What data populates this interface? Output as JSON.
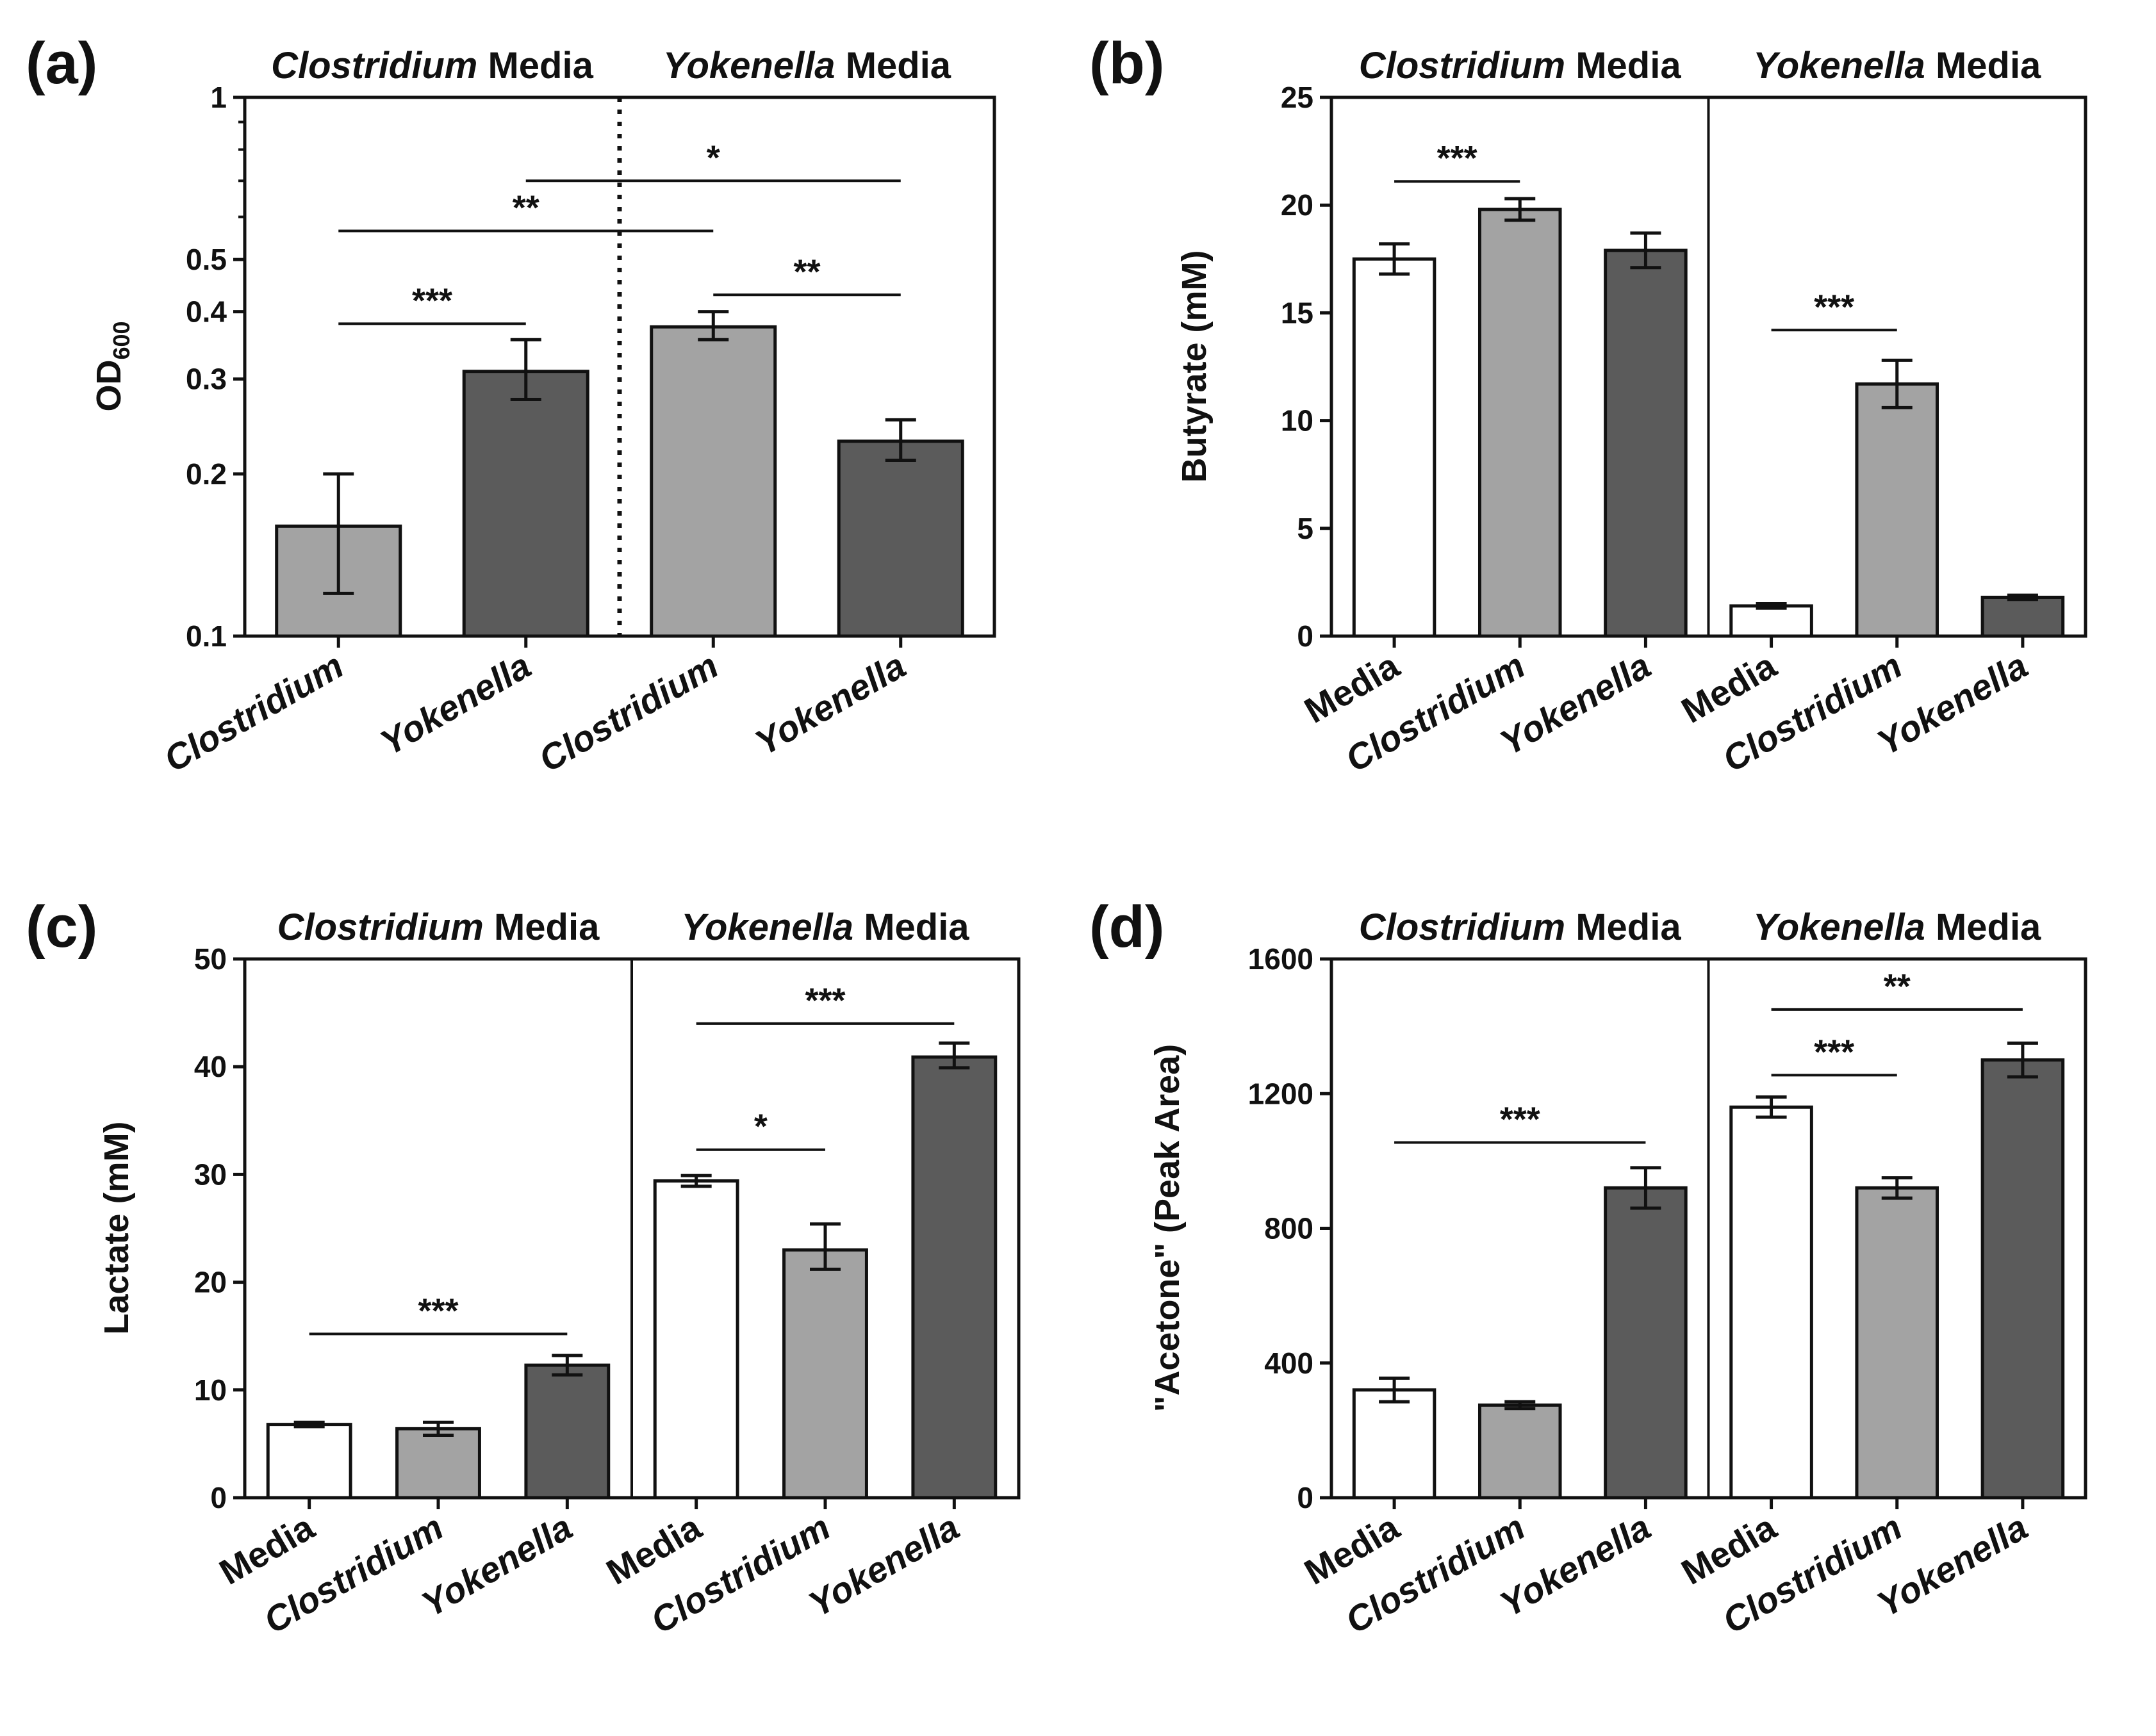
{
  "colors": {
    "media": "#ffffff",
    "clostridium": "#a3a3a3",
    "yokenella": "#5b5b5b",
    "stroke": "#111111"
  },
  "chart_data": [
    {
      "id": "a",
      "panel_label": "(a)",
      "type": "bar",
      "scale": "log",
      "ylabel": "OD",
      "ylabel_sub": "600",
      "ylim": [
        0.1,
        1
      ],
      "ticks": [
        {
          "value": 0.1,
          "label": "0.1"
        },
        {
          "value": 0.2,
          "label": "0.2"
        },
        {
          "value": 0.3,
          "label": "0.3"
        },
        {
          "value": 0.4,
          "label": "0.4"
        },
        {
          "value": 0.5,
          "label": "0.5"
        },
        {
          "value": 1,
          "label": "1"
        }
      ],
      "minor_ticks": [
        0.6,
        0.7,
        0.8,
        0.9
      ],
      "divider": "dotted",
      "groups": [
        {
          "organism": "Clostridium",
          "suffix": " Media"
        },
        {
          "organism": "Yokenella",
          "suffix": " Media"
        }
      ],
      "bars": [
        {
          "label": "Clostridium",
          "kind": "clostridium",
          "value": 0.16,
          "err": [
            0.12,
            0.2
          ]
        },
        {
          "label": "Yokenella",
          "kind": "yokenella",
          "value": 0.31,
          "err": [
            0.275,
            0.355
          ]
        },
        {
          "label": "Clostridium",
          "kind": "clostridium",
          "value": 0.375,
          "err": [
            0.355,
            0.4
          ]
        },
        {
          "label": "Yokenella",
          "kind": "yokenella",
          "value": 0.23,
          "err": [
            0.212,
            0.252
          ]
        }
      ],
      "significance": [
        {
          "from": 0,
          "to": 1,
          "level": 0.38,
          "label": "***"
        },
        {
          "from": 0,
          "to": 2,
          "level": 0.565,
          "label": "**"
        },
        {
          "from": 1,
          "to": 3,
          "level": 0.7,
          "label": "*"
        },
        {
          "from": 2,
          "to": 3,
          "level": 0.43,
          "label": "**"
        }
      ]
    },
    {
      "id": "b",
      "panel_label": "(b)",
      "type": "bar",
      "scale": "linear",
      "ylabel": "Butyrate (mM)",
      "ylim": [
        0,
        25
      ],
      "ticks": [
        {
          "value": 0,
          "label": "0"
        },
        {
          "value": 5,
          "label": "5"
        },
        {
          "value": 10,
          "label": "10"
        },
        {
          "value": 15,
          "label": "15"
        },
        {
          "value": 20,
          "label": "20"
        },
        {
          "value": 25,
          "label": "25"
        }
      ],
      "divider": "solid",
      "groups": [
        {
          "organism": "Clostridium",
          "suffix": " Media"
        },
        {
          "organism": "Yokenella",
          "suffix": " Media"
        }
      ],
      "bars": [
        {
          "label": "Media",
          "kind": "media",
          "value": 17.5,
          "err": [
            16.8,
            18.2
          ]
        },
        {
          "label": "Clostridium",
          "kind": "clostridium",
          "value": 19.8,
          "err": [
            19.3,
            20.3
          ]
        },
        {
          "label": "Yokenella",
          "kind": "yokenella",
          "value": 17.9,
          "err": [
            17.1,
            18.7
          ]
        },
        {
          "label": "Media",
          "kind": "media",
          "value": 1.4,
          "err": [
            1.3,
            1.5
          ]
        },
        {
          "label": "Clostridium",
          "kind": "clostridium",
          "value": 11.7,
          "err": [
            10.6,
            12.8
          ]
        },
        {
          "label": "Yokenella",
          "kind": "yokenella",
          "value": 1.8,
          "err": [
            1.7,
            1.9
          ]
        }
      ],
      "significance": [
        {
          "from": 0,
          "to": 1,
          "level": 21.1,
          "label": "***"
        },
        {
          "from": 3,
          "to": 4,
          "level": 14.2,
          "label": "***"
        }
      ]
    },
    {
      "id": "c",
      "panel_label": "(c)",
      "type": "bar",
      "scale": "linear",
      "ylabel": "Lactate (mM)",
      "ylim": [
        0,
        50
      ],
      "ticks": [
        {
          "value": 0,
          "label": "0"
        },
        {
          "value": 10,
          "label": "10"
        },
        {
          "value": 20,
          "label": "20"
        },
        {
          "value": 30,
          "label": "30"
        },
        {
          "value": 40,
          "label": "40"
        },
        {
          "value": 50,
          "label": "50"
        }
      ],
      "divider": "solid",
      "groups": [
        {
          "organism": "Clostridium",
          "suffix": " Media"
        },
        {
          "organism": "Yokenella",
          "suffix": " Media"
        }
      ],
      "bars": [
        {
          "label": "Media",
          "kind": "media",
          "value": 6.8,
          "err": [
            6.6,
            7.0
          ]
        },
        {
          "label": "Clostridium",
          "kind": "clostridium",
          "value": 6.4,
          "err": [
            5.8,
            7.0
          ]
        },
        {
          "label": "Yokenella",
          "kind": "yokenella",
          "value": 12.3,
          "err": [
            11.4,
            13.2
          ]
        },
        {
          "label": "Media",
          "kind": "media",
          "value": 29.4,
          "err": [
            28.9,
            29.9
          ]
        },
        {
          "label": "Clostridium",
          "kind": "clostridium",
          "value": 23.0,
          "err": [
            21.2,
            25.4
          ]
        },
        {
          "label": "Yokenella",
          "kind": "yokenella",
          "value": 40.9,
          "err": [
            39.9,
            42.2
          ]
        }
      ],
      "significance": [
        {
          "from": 0,
          "to": 2,
          "level": 15.2,
          "label": "***"
        },
        {
          "from": 3,
          "to": 4,
          "level": 32.3,
          "label": "*"
        },
        {
          "from": 3,
          "to": 5,
          "level": 44.0,
          "label": "***"
        }
      ]
    },
    {
      "id": "d",
      "panel_label": "(d)",
      "type": "bar",
      "scale": "linear",
      "ylabel": "\"Acetone\" (Peak Area)",
      "ylim": [
        0,
        1600
      ],
      "ticks": [
        {
          "value": 0,
          "label": "0"
        },
        {
          "value": 400,
          "label": "400"
        },
        {
          "value": 800,
          "label": "800"
        },
        {
          "value": 1200,
          "label": "1200"
        },
        {
          "value": 1600,
          "label": "1600"
        }
      ],
      "divider": "solid",
      "groups": [
        {
          "organism": "Clostridium",
          "suffix": " Media"
        },
        {
          "organism": "Yokenella",
          "suffix": " Media"
        }
      ],
      "bars": [
        {
          "label": "Media",
          "kind": "media",
          "value": 320,
          "err": [
            285,
            355
          ]
        },
        {
          "label": "Clostridium",
          "kind": "clostridium",
          "value": 275,
          "err": [
            265,
            285
          ]
        },
        {
          "label": "Yokenella",
          "kind": "yokenella",
          "value": 920,
          "err": [
            860,
            980
          ]
        },
        {
          "label": "Media",
          "kind": "media",
          "value": 1160,
          "err": [
            1130,
            1190
          ]
        },
        {
          "label": "Clostridium",
          "kind": "clostridium",
          "value": 920,
          "err": [
            890,
            950
          ]
        },
        {
          "label": "Yokenella",
          "kind": "yokenella",
          "value": 1300,
          "err": [
            1250,
            1350
          ]
        }
      ],
      "significance": [
        {
          "from": 0,
          "to": 2,
          "level": 1055,
          "label": "***"
        },
        {
          "from": 3,
          "to": 4,
          "level": 1255,
          "label": "***"
        },
        {
          "from": 3,
          "to": 5,
          "level": 1450,
          "label": "**"
        }
      ]
    }
  ]
}
